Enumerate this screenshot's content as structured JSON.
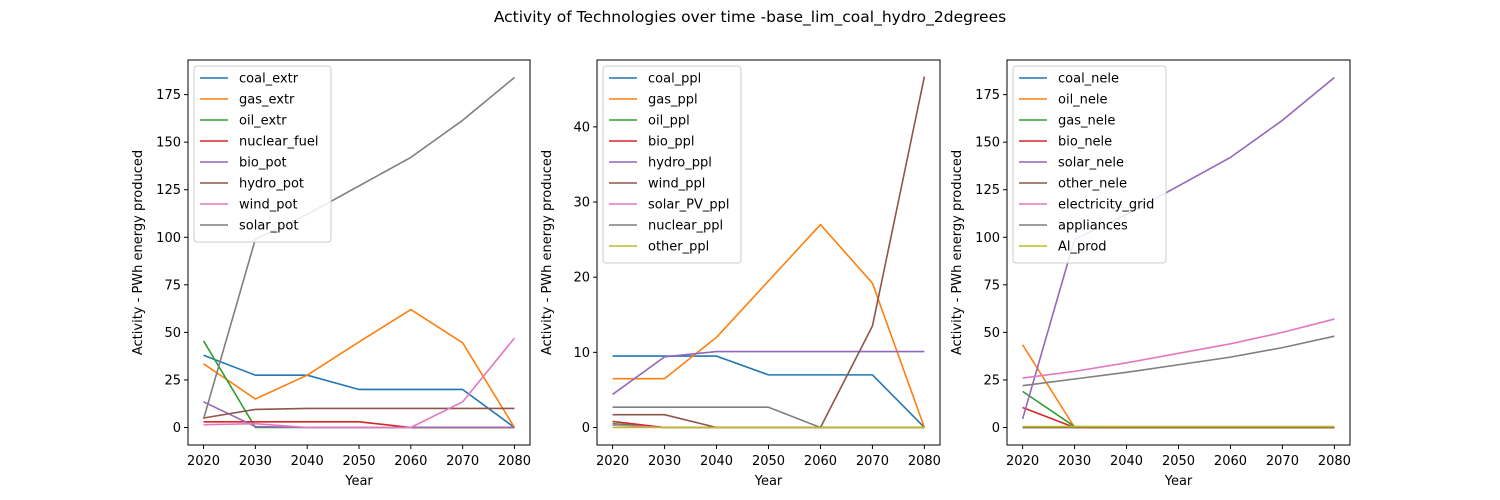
{
  "title": "Activity of Technologies over time -base_lim_coal_hydro_2degrees",
  "chart_data": [
    {
      "type": "line",
      "xlabel": "Year",
      "ylabel": "Activity - PWh energy produced",
      "x": [
        2020,
        2030,
        2040,
        2050,
        2060,
        2070,
        2080
      ],
      "xticks": [
        2020,
        2030,
        2040,
        2050,
        2060,
        2070,
        2080
      ],
      "ylim": [
        -9.2,
        193.2
      ],
      "yticks": [
        0,
        25,
        50,
        75,
        100,
        125,
        150,
        175
      ],
      "legend": "upper-left",
      "series": [
        {
          "name": "coal_extr",
          "color": "#1f77b4",
          "values": [
            38,
            27.5,
            27.5,
            20,
            20,
            20,
            0
          ]
        },
        {
          "name": "gas_extr",
          "color": "#ff7f0e",
          "values": [
            33.5,
            15,
            27.5,
            45,
            62,
            44.5,
            0
          ]
        },
        {
          "name": "oil_extr",
          "color": "#2ca02c",
          "values": [
            45.5,
            0,
            0,
            0,
            0,
            0,
            0
          ]
        },
        {
          "name": "nuclear_fuel",
          "color": "#d62728",
          "values": [
            3,
            3,
            3,
            3,
            0,
            0,
            0
          ]
        },
        {
          "name": "bio_pot",
          "color": "#9467bd",
          "values": [
            13.5,
            0.5,
            0,
            0,
            0,
            0,
            0
          ]
        },
        {
          "name": "hydro_pot",
          "color": "#8c564b",
          "values": [
            5,
            9.5,
            10,
            10,
            10,
            10,
            10
          ]
        },
        {
          "name": "wind_pot",
          "color": "#e377c2",
          "values": [
            1.5,
            2,
            0,
            0,
            0,
            13.5,
            47
          ]
        },
        {
          "name": "solar_pot",
          "color": "#7f7f7f",
          "values": [
            4.5,
            99,
            112,
            127,
            142,
            161.5,
            184
          ]
        }
      ]
    },
    {
      "type": "line",
      "xlabel": "Year",
      "ylabel": "Activity - PWh energy produced",
      "x": [
        2020,
        2030,
        2040,
        2050,
        2060,
        2070,
        2080
      ],
      "xticks": [
        2020,
        2030,
        2040,
        2050,
        2060,
        2070,
        2080
      ],
      "ylim": [
        -2.33,
        48.9
      ],
      "yticks": [
        0,
        10,
        20,
        30,
        40
      ],
      "legend": "upper-left",
      "series": [
        {
          "name": "coal_ppl",
          "color": "#1f77b4",
          "values": [
            9.5,
            9.5,
            9.5,
            7,
            7,
            7,
            0
          ]
        },
        {
          "name": "gas_ppl",
          "color": "#ff7f0e",
          "values": [
            6.5,
            6.5,
            12,
            19.5,
            27,
            19.2,
            0
          ]
        },
        {
          "name": "oil_ppl",
          "color": "#2ca02c",
          "values": [
            0.5,
            0,
            0,
            0,
            0,
            0,
            0
          ]
        },
        {
          "name": "bio_ppl",
          "color": "#d62728",
          "values": [
            0.8,
            0,
            0,
            0,
            0,
            0,
            0
          ]
        },
        {
          "name": "hydro_ppl",
          "color": "#9467bd",
          "values": [
            4.4,
            9.4,
            10.1,
            10.1,
            10.1,
            10.1,
            10.1
          ]
        },
        {
          "name": "wind_ppl",
          "color": "#8c564b",
          "values": [
            1.7,
            1.7,
            0,
            0,
            0,
            13.5,
            46.7
          ]
        },
        {
          "name": "solar_PV_ppl",
          "color": "#e377c2",
          "values": [
            0.3,
            0,
            0,
            0,
            0,
            0,
            0
          ]
        },
        {
          "name": "nuclear_ppl",
          "color": "#7f7f7f",
          "values": [
            2.7,
            2.7,
            2.7,
            2.7,
            0,
            0,
            0
          ]
        },
        {
          "name": "other_ppl",
          "color": "#bcbd22",
          "values": [
            0,
            0,
            0,
            0,
            0,
            0,
            0
          ]
        }
      ]
    },
    {
      "type": "line",
      "xlabel": "Year",
      "ylabel": "Activity - PWh energy produced",
      "x": [
        2020,
        2030,
        2040,
        2050,
        2060,
        2070,
        2080
      ],
      "xticks": [
        2020,
        2030,
        2040,
        2050,
        2060,
        2070,
        2080
      ],
      "ylim": [
        -9.2,
        193.2
      ],
      "yticks": [
        0,
        25,
        50,
        75,
        100,
        125,
        150,
        175
      ],
      "legend": "upper-left",
      "series": [
        {
          "name": "coal_nele",
          "color": "#1f77b4",
          "values": [
            0,
            0,
            0,
            0,
            0,
            0,
            0
          ]
        },
        {
          "name": "oil_nele",
          "color": "#ff7f0e",
          "values": [
            43.5,
            0,
            0,
            0,
            0,
            0,
            0
          ]
        },
        {
          "name": "gas_nele",
          "color": "#2ca02c",
          "values": [
            19,
            0.5,
            0,
            0,
            0,
            0,
            0
          ]
        },
        {
          "name": "bio_nele",
          "color": "#d62728",
          "values": [
            10.5,
            0,
            0,
            0,
            0,
            0,
            0
          ]
        },
        {
          "name": "solar_nele",
          "color": "#9467bd",
          "values": [
            4.5,
            99,
            112,
            127,
            142,
            161.5,
            184
          ]
        },
        {
          "name": "other_nele",
          "color": "#8c564b",
          "values": [
            0,
            0,
            0,
            0,
            0,
            0,
            0
          ]
        },
        {
          "name": "electricity_grid",
          "color": "#e377c2",
          "values": [
            26,
            29.5,
            34,
            39,
            44,
            50,
            57
          ]
        },
        {
          "name": "appliances",
          "color": "#7f7f7f",
          "values": [
            22,
            25.5,
            29,
            33,
            37,
            42,
            48
          ]
        },
        {
          "name": "Al_prod",
          "color": "#bcbd22",
          "values": [
            0.5,
            0.5,
            0.5,
            0.5,
            0.5,
            0.5,
            0.5
          ]
        }
      ]
    }
  ]
}
